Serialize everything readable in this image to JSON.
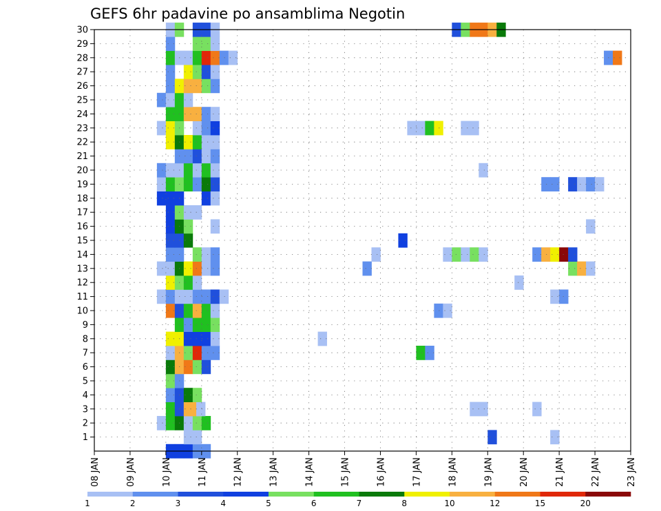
{
  "chart_data": {
    "type": "heatmap",
    "title": "GEFS 6hr padavine po ansamblima Negotin",
    "y_categories": [
      "1",
      "2",
      "3",
      "4",
      "5",
      "6",
      "7",
      "8",
      "9",
      "10",
      "11",
      "12",
      "13",
      "14",
      "15",
      "16",
      "17",
      "18",
      "19",
      "20",
      "21",
      "22",
      "23",
      "24",
      "25",
      "26",
      "27",
      "28",
      "29",
      "30"
    ],
    "x_ticks": [
      "08 JAN",
      "09 JAN",
      "10 JAN",
      "11 JAN",
      "12 JAN",
      "13 JAN",
      "14 JAN",
      "15 JAN",
      "16 JAN",
      "17 JAN",
      "18 JAN",
      "19 JAN",
      "20 JAN",
      "21 JAN",
      "22 JAN",
      "23 JAN"
    ],
    "x_range_days": [
      0,
      15
    ],
    "y_range": [
      0,
      30
    ],
    "grid": true,
    "colorbar": {
      "labels": [
        "1",
        "2",
        "3",
        "4",
        "5",
        "6",
        "7",
        "8",
        "10",
        "12",
        "15",
        "20"
      ],
      "colors": [
        "#a8c0f4",
        "#6090ee",
        "#2050dc",
        "#1040e0",
        "#78e060",
        "#20c020",
        "#0a7a0a",
        "#f0f000",
        "#f8b040",
        "#f07818",
        "#e02808",
        "#8a0808"
      ]
    },
    "legend_position": "bottom",
    "levels_note": "cell value = colour-band index 1-12 (1:1-2, 2:2-3, 3:3-4, 4:4-5, 5:5-6, 6:6-7, 7:7-8, 8:8-10, 9:10-12, 10:12-15, 11:15-20, 12:>20)",
    "cells": [
      {
        "member": 0,
        "t": [
          10.0,
          10.25,
          10.5,
          10.75,
          11.0
        ],
        "c": [
          4,
          4,
          4,
          2,
          2
        ]
      },
      {
        "member": 1,
        "t": [
          10.5,
          10.75,
          19.0,
          20.75
        ],
        "c": [
          1,
          1,
          3,
          1
        ]
      },
      {
        "member": 2,
        "t": [
          9.75,
          10.0,
          10.25,
          10.5,
          10.75,
          11.0
        ],
        "c": [
          1,
          6,
          7,
          1,
          5,
          6
        ]
      },
      {
        "member": 3,
        "t": [
          10.0,
          10.25,
          10.5,
          10.75,
          10.85,
          15.25,
          18.5,
          18.75,
          20.25
        ],
        "c": [
          6,
          3,
          9,
          9,
          1,
          0,
          1,
          1,
          1
        ]
      },
      {
        "member": 4,
        "t": [
          10.0,
          10.25,
          10.5,
          10.75
        ],
        "c": [
          2,
          3,
          7,
          5
        ]
      },
      {
        "member": 5,
        "t": [
          10.0,
          10.25
        ],
        "c": [
          5,
          2
        ]
      },
      {
        "member": 6,
        "t": [
          10.0,
          10.25,
          10.5,
          10.75,
          11.0
        ],
        "c": [
          7,
          9,
          10,
          5,
          3
        ]
      },
      {
        "member": 7,
        "t": [
          10.0,
          10.25,
          10.5,
          10.75,
          11.0,
          11.25,
          17.0,
          17.25
        ],
        "c": [
          1,
          9,
          5,
          11,
          2,
          2,
          6,
          2
        ]
      },
      {
        "member": 8,
        "t": [
          10.0,
          10.25,
          10.5,
          10.75,
          11.0,
          11.25,
          14.25
        ],
        "c": [
          8,
          8,
          4,
          4,
          4,
          1,
          1
        ]
      },
      {
        "member": 9,
        "t": [
          10.25,
          10.5,
          10.75,
          11.0,
          11.25
        ],
        "c": [
          6,
          2,
          6,
          6,
          5
        ]
      },
      {
        "member": 10,
        "t": [
          10.0,
          10.25,
          10.5,
          10.75,
          11.0,
          11.25,
          17.5,
          17.75
        ],
        "c": [
          10,
          3,
          6,
          9,
          6,
          1,
          2,
          1
        ]
      },
      {
        "member": 11,
        "t": [
          9.75,
          10.0,
          10.25,
          10.5,
          10.75,
          11.0,
          11.25,
          11.5,
          20.75,
          21.0
        ],
        "c": [
          1,
          2,
          1,
          1,
          2,
          2,
          3,
          1,
          1,
          2
        ]
      },
      {
        "member": 12,
        "t": [
          10.0,
          10.25,
          10.5,
          10.75,
          19.75
        ],
        "c": [
          8,
          5,
          6,
          1,
          1
        ]
      },
      {
        "member": 13,
        "t": [
          9.75,
          10.0,
          10.25,
          10.5,
          10.75,
          11.0,
          11.25,
          15.5,
          21.25,
          21.5,
          21.75
        ],
        "c": [
          1,
          1,
          7,
          8,
          10,
          1,
          2,
          2,
          5,
          9,
          1
        ]
      },
      {
        "member": 14,
        "t": [
          10.0,
          10.25,
          10.75,
          11.0,
          11.25,
          15.75,
          17.75,
          18.0,
          18.25,
          18.5,
          18.75,
          20.25,
          20.5,
          20.75,
          21.0,
          21.25
        ],
        "c": [
          2,
          2,
          5,
          1,
          2,
          1,
          1,
          5,
          1,
          5,
          1,
          2,
          9,
          8,
          12,
          3
        ]
      },
      {
        "member": 15,
        "t": [
          10.0,
          10.25,
          10.5,
          16.5
        ],
        "c": [
          3,
          3,
          7,
          4
        ]
      },
      {
        "member": 16,
        "t": [
          10.0,
          10.25,
          10.5,
          11.25,
          21.75
        ],
        "c": [
          4,
          7,
          5,
          1,
          1
        ]
      },
      {
        "member": 17,
        "t": [
          10.0,
          10.25,
          10.5,
          10.75
        ],
        "c": [
          4,
          5,
          1,
          1
        ]
      },
      {
        "member": 18,
        "t": [
          9.75,
          10.0,
          10.25,
          11.0,
          11.25
        ],
        "c": [
          4,
          4,
          4,
          4,
          1
        ]
      },
      {
        "member": 19,
        "t": [
          9.75,
          10.0,
          10.25,
          10.5,
          10.75,
          11.0,
          11.25,
          20.5,
          20.75,
          21.25,
          21.5,
          21.75,
          22.0
        ],
        "c": [
          1,
          6,
          5,
          6,
          2,
          7,
          3,
          2,
          2,
          3,
          1,
          2,
          1
        ]
      },
      {
        "member": 20,
        "t": [
          9.75,
          10.0,
          10.25,
          10.5,
          10.75,
          11.0,
          11.25,
          18.75
        ],
        "c": [
          2,
          1,
          1,
          6,
          1,
          6,
          1,
          1
        ]
      },
      {
        "member": 21,
        "t": [
          10.25,
          10.5,
          10.75,
          11.0,
          11.25
        ],
        "c": [
          2,
          2,
          3,
          1,
          2
        ]
      },
      {
        "member": 22,
        "t": [
          10.0,
          10.25,
          10.5,
          10.75,
          11.0,
          11.25
        ],
        "c": [
          8,
          7,
          8,
          6,
          1,
          1
        ]
      },
      {
        "member": 23,
        "t": [
          9.75,
          10.0,
          10.25,
          10.75,
          11.0,
          11.25,
          16.75,
          17.0,
          17.25,
          17.5,
          18.25,
          18.5
        ],
        "c": [
          1,
          8,
          5,
          1,
          2,
          4,
          1,
          1,
          6,
          8,
          1,
          1
        ]
      },
      {
        "member": 24,
        "t": [
          10.0,
          10.25,
          10.5,
          10.75,
          11.0,
          11.25
        ],
        "c": [
          6,
          6,
          9,
          9,
          2,
          1
        ]
      },
      {
        "member": 25,
        "t": [
          9.75,
          10.0,
          10.25,
          10.5
        ],
        "c": [
          2,
          1,
          6,
          1
        ]
      },
      {
        "member": 26,
        "t": [
          10.0,
          10.25,
          10.5,
          10.75,
          11.0,
          11.25
        ],
        "c": [
          2,
          8,
          9,
          9,
          5,
          2
        ]
      },
      {
        "member": 27,
        "t": [
          10.0,
          10.5,
          10.75,
          11.0,
          11.25
        ],
        "c": [
          2,
          8,
          5,
          3,
          1
        ]
      },
      {
        "member": 28,
        "t": [
          10.0,
          10.25,
          10.5,
          10.75,
          11.0,
          11.25,
          11.5,
          11.75,
          22.25,
          22.5
        ],
        "c": [
          6,
          1,
          1,
          6,
          11,
          10,
          2,
          1,
          2,
          10
        ]
      },
      {
        "member": 29,
        "t": [
          10.0,
          10.75,
          11.0,
          11.25
        ],
        "c": [
          2,
          5,
          5,
          1
        ]
      },
      {
        "member": 30,
        "t": [
          10.0,
          10.25,
          10.75,
          11.0,
          11.25,
          18.0,
          18.25,
          18.5,
          18.75,
          19.0,
          19.25
        ],
        "c": [
          1,
          5,
          3,
          3,
          1,
          3,
          5,
          10,
          10,
          9,
          7
        ]
      }
    ]
  }
}
